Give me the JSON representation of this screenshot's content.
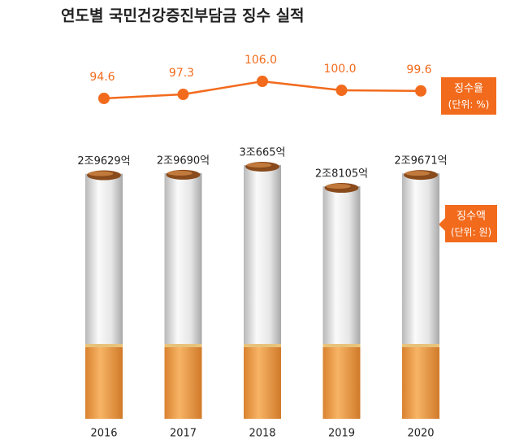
{
  "chart_data": [
    {
      "type": "line",
      "title": "연도별 국민건강증진부담금 징수 실적",
      "series": [
        {
          "name": "징수율",
          "unit": "(단위: %)",
          "color": "#f26b1d",
          "values": [
            94.6,
            97.3,
            106.0,
            100.0,
            99.6
          ],
          "value_labels": [
            "94.6",
            "97.3",
            "106.0",
            "100.0",
            "99.6"
          ]
        }
      ]
    },
    {
      "type": "bar",
      "categories": [
        "2016",
        "2017",
        "2018",
        "2019",
        "2020"
      ],
      "series": [
        {
          "name": "징수액",
          "unit": "(단위: 원)",
          "color": "#f0a04b",
          "values": [
            29629,
            29690,
            30665,
            28105,
            29671
          ],
          "value_labels": [
            "2조9629억",
            "2조9690억",
            "3조665억",
            "2조8105억",
            "2조9671억"
          ]
        }
      ]
    }
  ]
}
